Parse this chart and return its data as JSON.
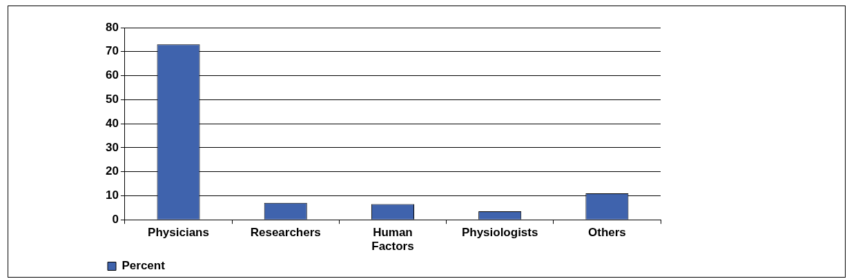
{
  "chart_data": {
    "type": "bar",
    "categories": [
      "Physicians",
      "Researchers",
      "Human Factors",
      "Physiologists",
      "Others"
    ],
    "series": [
      {
        "name": "Percent",
        "color": "#3f63ad",
        "values": [
          73,
          7,
          6.5,
          3.5,
          11
        ]
      }
    ],
    "ylim": [
      0,
      80
    ],
    "yticks": [
      0,
      10,
      20,
      30,
      40,
      50,
      60,
      70,
      80
    ],
    "grid": "y",
    "legend": "bottom left"
  }
}
